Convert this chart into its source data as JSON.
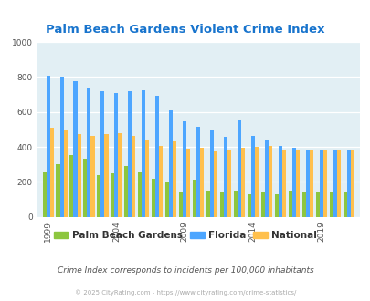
{
  "title": "Palm Beach Gardens Violent Crime Index",
  "title_color": "#1874CD",
  "subtitle": "Crime Index corresponds to incidents per 100,000 inhabitants",
  "footer": "© 2025 CityRating.com - https://www.cityrating.com/crime-statistics/",
  "years": [
    1999,
    2000,
    2001,
    2002,
    2003,
    2004,
    2005,
    2006,
    2007,
    2008,
    2009,
    2010,
    2011,
    2012,
    2013,
    2014,
    2015,
    2016,
    2017,
    2018,
    2019,
    2020,
    2021
  ],
  "palm_beach": [
    255,
    300,
    355,
    330,
    240,
    250,
    290,
    255,
    215,
    200,
    145,
    210,
    150,
    145,
    150,
    130,
    145,
    130,
    150,
    140,
    140,
    140,
    140
  ],
  "florida": [
    810,
    800,
    775,
    740,
    720,
    710,
    720,
    725,
    695,
    610,
    545,
    515,
    495,
    460,
    550,
    465,
    435,
    405,
    395,
    385,
    385,
    385,
    385
  ],
  "national": [
    510,
    500,
    475,
    465,
    475,
    480,
    465,
    435,
    405,
    430,
    390,
    395,
    375,
    380,
    395,
    400,
    405,
    385,
    385,
    380,
    380,
    380,
    380
  ],
  "palm_beach_color": "#8DC63F",
  "florida_color": "#4DA6FF",
  "national_color": "#FFC04D",
  "plot_bg_color": "#E2EFF4",
  "ylim": [
    0,
    1000
  ],
  "yticks": [
    0,
    200,
    400,
    600,
    800,
    1000
  ],
  "tick_years": [
    1999,
    2004,
    2009,
    2014,
    2019
  ],
  "bar_width": 0.27,
  "legend_labels": [
    "Palm Beach Gardens",
    "Florida",
    "National"
  ]
}
